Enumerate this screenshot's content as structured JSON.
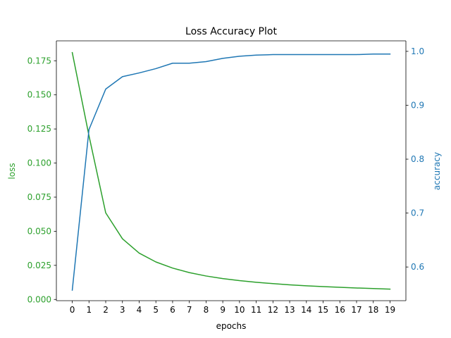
{
  "chart_data": {
    "type": "line",
    "title": "Loss Accuracy Plot",
    "xlabel": "epochs",
    "ylabel_left": "loss",
    "ylabel_right": "accuracy",
    "x": [
      0,
      1,
      2,
      3,
      4,
      5,
      6,
      7,
      8,
      9,
      10,
      11,
      12,
      13,
      14,
      15,
      16,
      17,
      18,
      19
    ],
    "xlim": [
      -0.95,
      19.95
    ],
    "ylim_left": [
      -0.0009,
      0.1896
    ],
    "ylim_right": [
      0.5375,
      1.0195
    ],
    "left_ticks": [
      "0.000",
      "0.025",
      "0.050",
      "0.075",
      "0.100",
      "0.125",
      "0.150",
      "0.175"
    ],
    "right_ticks": [
      "0.6",
      "0.7",
      "0.8",
      "0.9",
      "1.0"
    ],
    "series": [
      {
        "name": "loss",
        "axis": "left",
        "color": "#2ca02c",
        "values": [
          0.181,
          0.12,
          0.0635,
          0.0445,
          0.034,
          0.0275,
          0.023,
          0.0197,
          0.0172,
          0.0153,
          0.0138,
          0.0126,
          0.0116,
          0.0107,
          0.01,
          0.0094,
          0.0089,
          0.0084,
          0.008,
          0.0076
        ]
      },
      {
        "name": "accuracy",
        "axis": "right",
        "color": "#1f77b4",
        "values": [
          0.557,
          0.855,
          0.93,
          0.953,
          0.96,
          0.968,
          0.978,
          0.978,
          0.981,
          0.987,
          0.991,
          0.993,
          0.994,
          0.994,
          0.994,
          0.994,
          0.994,
          0.994,
          0.995,
          0.995
        ]
      }
    ],
    "colors": {
      "loss_axis": "#2ca02c",
      "accuracy_axis": "#1f77b4",
      "frame": "#000000"
    }
  }
}
